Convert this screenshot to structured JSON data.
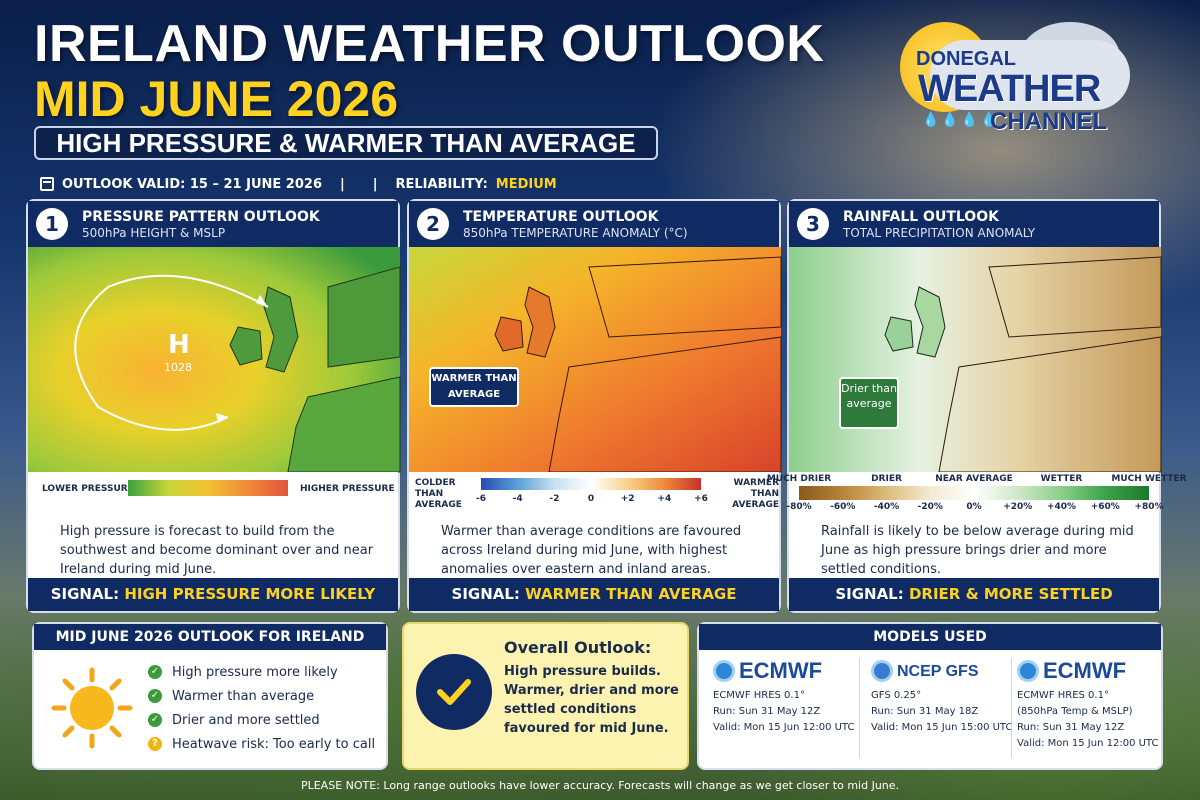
{
  "header": {
    "title_line1": "IRELAND WEATHER OUTLOOK",
    "title_line2": "MID JUNE 2026",
    "subtitle": "HIGH PRESSURE & WARMER THAN AVERAGE",
    "valid_text": "OUTLOOK VALID: 15 – 21 JUNE 2026",
    "separator1": "|",
    "separator2": "|",
    "reliability_label": "RELIABILITY:",
    "reliability_value": "MEDIUM"
  },
  "logo": {
    "line1": "DONEGAL",
    "line2": "WEATHER",
    "line3": "CHANNEL"
  },
  "panels": [
    {
      "number": "1",
      "title": "PRESSURE PATTERN OUTLOOK",
      "subtitle": "500hPa HEIGHT & MSLP",
      "map_h": "H",
      "map_value": "1028",
      "legend_left": "LOWER PRESSURE",
      "legend_right": "HIGHER PRESSURE",
      "text": "High pressure is forecast to build from the southwest and become dominant over and near Ireland during mid June.",
      "signal_label": "SIGNAL:",
      "signal_value": "HIGH PRESSURE MORE LIKELY"
    },
    {
      "number": "2",
      "title": "TEMPERATURE OUTLOOK",
      "subtitle": "850hPa TEMPERATURE ANOMALY (°C)",
      "map_label": "WARMER THAN AVERAGE",
      "legend_left": "COLDER THAN AVERAGE",
      "legend_right": "WARMER THAN AVERAGE",
      "ticks": [
        "-6",
        "-4",
        "-2",
        "0",
        "+2",
        "+4",
        "+6"
      ],
      "text": "Warmer than average conditions are favoured across Ireland during mid June, with highest anomalies over eastern and inland areas.",
      "signal_label": "SIGNAL:",
      "signal_value": "WARMER THAN AVERAGE"
    },
    {
      "number": "3",
      "title": "RAINFALL OUTLOOK",
      "subtitle": "TOTAL PRECIPITATION ANOMALY",
      "map_label": "Drier than average",
      "legend_cats": [
        "MUCH DRIER",
        "DRIER",
        "NEAR AVERAGE",
        "WETTER",
        "MUCH WETTER"
      ],
      "ticks": [
        "-80%",
        "-60%",
        "-40%",
        "-20%",
        "0%",
        "+20%",
        "+40%",
        "+60%",
        "+80%"
      ],
      "text": "Rainfall is likely to be below average during mid June as high pressure brings drier and more settled conditions.",
      "signal_label": "SIGNAL:",
      "signal_value": "DRIER & MORE SETTLED"
    }
  ],
  "summary": {
    "title": "MID JUNE 2026 OUTLOOK FOR IRELAND",
    "items": [
      "High pressure more likely",
      "Warmer than average",
      "Drier and more settled",
      "Heatwave risk: Too early to call"
    ]
  },
  "overall": {
    "title": "Overall Outlook:",
    "body": "High pressure builds. Warmer, drier and more settled conditions favoured for mid June."
  },
  "models": {
    "title": "MODELS USED",
    "list": [
      {
        "logo": "ECMWF",
        "name": "ECMWF HRES 0.1°",
        "extra": "",
        "run": "Run: Sun 31 May 12Z",
        "valid": "Valid: Mon 15 Jun 12:00 UTC"
      },
      {
        "logo": "NCEP GFS",
        "name": "GFS 0.25°",
        "extra": "",
        "run": "Run: Sun 31 May 18Z",
        "valid": "Valid: Mon 15 Jun 15:00 UTC"
      },
      {
        "logo": "ECMWF",
        "name": "ECMWF HRES 0.1°",
        "extra": "(850hPa Temp & MSLP)",
        "run": "Run: Sun 31 May 12Z",
        "valid": "Valid: Mon 15 Jun 12:00 UTC"
      }
    ]
  },
  "footer": "PLEASE NOTE: Long range outlooks have lower accuracy. Forecasts will change as we get closer to mid June."
}
